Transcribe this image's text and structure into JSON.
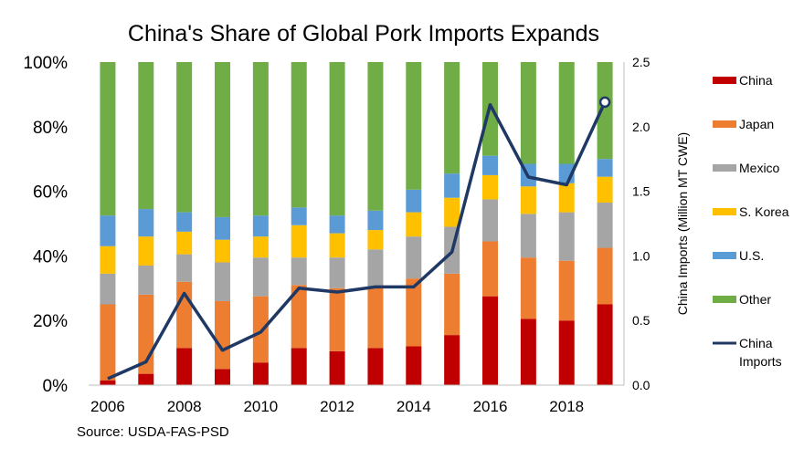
{
  "chart_data": {
    "type": "bar",
    "stacked": true,
    "title": "China's Share of Global Pork Imports Expands",
    "source": "Source:  USDA-FAS-PSD",
    "years": [
      2006,
      2007,
      2008,
      2009,
      2010,
      2011,
      2012,
      2013,
      2014,
      2015,
      2016,
      2017,
      2018,
      2019
    ],
    "x_tick_labels": [
      "2006",
      "2008",
      "2010",
      "2012",
      "2014",
      "2016",
      "2018"
    ],
    "y_left": {
      "ticks": [
        "0%",
        "20%",
        "40%",
        "60%",
        "80%",
        "100%"
      ],
      "ylim": [
        0,
        100
      ]
    },
    "y_right": {
      "label": "China Imports (Million MT CWE)",
      "ticks": [
        "0.0",
        "0.5",
        "1.0",
        "1.5",
        "2.0",
        "2.5"
      ],
      "ylim": [
        0,
        2.5
      ]
    },
    "series": [
      {
        "name": "China",
        "color": "#C00000",
        "values": [
          1.5,
          3.5,
          11.5,
          5,
          7,
          11.5,
          10.5,
          11.5,
          12,
          15.5,
          27.5,
          20.5,
          20,
          25
        ]
      },
      {
        "name": "Japan",
        "color": "#ED7D31",
        "values": [
          23.5,
          24.5,
          20.5,
          21,
          20.5,
          19.5,
          19.5,
          18.5,
          21,
          19,
          17,
          19,
          18.5,
          17.5
        ]
      },
      {
        "name": "Mexico",
        "color": "#A5A5A5",
        "values": [
          9.5,
          9,
          8.5,
          12,
          12,
          8.5,
          9.5,
          12,
          13,
          14.5,
          13,
          13.5,
          15,
          14
        ]
      },
      {
        "name": "S. Korea",
        "color": "#FFC000",
        "values": [
          8.5,
          9,
          7,
          7,
          6.5,
          10,
          7.5,
          6,
          7.5,
          9,
          7.5,
          8.5,
          9,
          8
        ]
      },
      {
        "name": "U.S.",
        "color": "#5B9BD5",
        "values": [
          9.5,
          8.5,
          6,
          7,
          6.5,
          5.5,
          5.5,
          6,
          7,
          7.5,
          6,
          7,
          6,
          5.5
        ]
      },
      {
        "name": "Other",
        "color": "#70AD47",
        "values": [
          47.5,
          45.5,
          46.5,
          48,
          47.5,
          45,
          47.5,
          46,
          39.5,
          34.5,
          29,
          31.5,
          31.5,
          30
        ]
      }
    ],
    "line_series": {
      "name": "China Imports",
      "axis": "right",
      "color": "#1F3864",
      "values": [
        0.05,
        0.18,
        0.71,
        0.27,
        0.41,
        0.75,
        0.72,
        0.76,
        0.76,
        1.03,
        2.17,
        1.61,
        1.55,
        2.19
      ]
    },
    "legend": [
      {
        "label": "China",
        "kind": "box",
        "color": "#C00000"
      },
      {
        "label": "Japan",
        "kind": "box",
        "color": "#ED7D31"
      },
      {
        "label": "Mexico",
        "kind": "box",
        "color": "#A5A5A5"
      },
      {
        "label": "S. Korea",
        "kind": "box",
        "color": "#FFC000"
      },
      {
        "label": "U.S.",
        "kind": "box",
        "color": "#5B9BD5"
      },
      {
        "label": "Other",
        "kind": "box",
        "color": "#70AD47"
      },
      {
        "label": [
          "China",
          "Imports"
        ],
        "kind": "line",
        "color": "#1F3864"
      }
    ],
    "legend_position": "right"
  }
}
